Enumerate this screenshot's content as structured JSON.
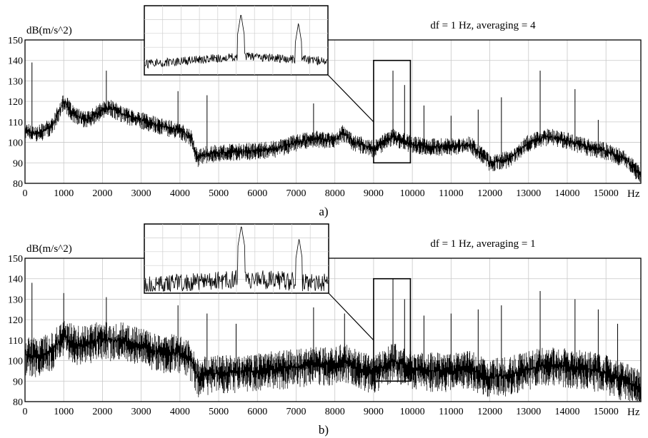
{
  "chart_data": [
    {
      "type": "line",
      "caption": "a)",
      "annotation": "df = 1 Hz, averaging = 4",
      "ylabel": "dB(m/s^2)",
      "xunit": "Hz",
      "xlim": [
        0,
        15900
      ],
      "ylim": [
        80,
        150
      ],
      "x_ticks": [
        0,
        1000,
        2000,
        3000,
        4000,
        5000,
        6000,
        7000,
        8000,
        9000,
        10000,
        11000,
        12000,
        13000,
        14000,
        15000
      ],
      "y_ticks": [
        80,
        90,
        100,
        110,
        120,
        130,
        140,
        150
      ],
      "grid": true,
      "noise_band_db": 4,
      "envelope": {
        "x": [
          0,
          300,
          700,
          1000,
          1300,
          1600,
          2000,
          2200,
          2500,
          3000,
          3500,
          4000,
          4300,
          4450,
          4600,
          5000,
          6000,
          6500,
          7000,
          7500,
          8000,
          8200,
          8500,
          9000,
          9500,
          10000,
          10500,
          11000,
          11500,
          11800,
          12000,
          12500,
          13000,
          13500,
          14000,
          14500,
          15000,
          15500,
          15900
        ],
        "y": [
          106,
          104,
          108,
          120,
          113,
          111,
          116,
          117,
          114,
          111,
          108,
          106,
          102,
          92,
          94,
          95,
          96,
          97,
          100,
          102,
          101,
          105,
          100,
          97,
          103,
          99,
          98,
          98,
          99,
          94,
          90,
          92,
          100,
          103,
          101,
          98,
          96,
          92,
          84
        ]
      },
      "peaks": [
        {
          "x": 180,
          "y": 139
        },
        {
          "x": 2100,
          "y": 135
        },
        {
          "x": 3950,
          "y": 125
        },
        {
          "x": 4700,
          "y": 123
        },
        {
          "x": 7450,
          "y": 119
        },
        {
          "x": 9500,
          "y": 135
        },
        {
          "x": 9800,
          "y": 128
        },
        {
          "x": 10300,
          "y": 118
        },
        {
          "x": 11000,
          "y": 113
        },
        {
          "x": 11700,
          "y": 116
        },
        {
          "x": 12300,
          "y": 122
        },
        {
          "x": 13300,
          "y": 135
        },
        {
          "x": 14200,
          "y": 126
        },
        {
          "x": 14800,
          "y": 111
        }
      ],
      "zoom_box": {
        "x": [
          9000,
          9950
        ],
        "y": [
          90,
          140
        ]
      }
    },
    {
      "type": "line",
      "caption": "b)",
      "annotation": "df = 1 Hz, averaging = 1",
      "ylabel": "dB(m/s^2)",
      "xunit": "Hz",
      "xlim": [
        0,
        15900
      ],
      "ylim": [
        80,
        150
      ],
      "x_ticks": [
        0,
        1000,
        2000,
        3000,
        4000,
        5000,
        6000,
        7000,
        8000,
        9000,
        10000,
        11000,
        12000,
        13000,
        14000,
        15000
      ],
      "y_ticks": [
        80,
        90,
        100,
        110,
        120,
        130,
        140,
        150
      ],
      "grid": true,
      "noise_band_db": 9,
      "envelope": {
        "x": [
          0,
          300,
          700,
          1000,
          1300,
          1600,
          2000,
          2200,
          2500,
          3000,
          3500,
          4000,
          4300,
          4450,
          4600,
          5000,
          6000,
          6500,
          7000,
          7500,
          8000,
          8200,
          8500,
          9000,
          9500,
          10000,
          10500,
          11000,
          11500,
          11800,
          12000,
          12500,
          13000,
          13500,
          14000,
          14500,
          15000,
          15500,
          15900
        ],
        "y": [
          103,
          102,
          105,
          112,
          108,
          108,
          111,
          110,
          110,
          107,
          104,
          104,
          100,
          92,
          93,
          94,
          95,
          96,
          97,
          98,
          98,
          100,
          97,
          94,
          100,
          96,
          95,
          95,
          96,
          93,
          92,
          93,
          96,
          98,
          97,
          96,
          94,
          90,
          86
        ]
      },
      "peaks": [
        {
          "x": 180,
          "y": 138
        },
        {
          "x": 1000,
          "y": 133
        },
        {
          "x": 2100,
          "y": 131
        },
        {
          "x": 3950,
          "y": 127
        },
        {
          "x": 4700,
          "y": 123
        },
        {
          "x": 5450,
          "y": 118
        },
        {
          "x": 7450,
          "y": 126
        },
        {
          "x": 8250,
          "y": 123
        },
        {
          "x": 9500,
          "y": 140
        },
        {
          "x": 9800,
          "y": 130
        },
        {
          "x": 10300,
          "y": 122
        },
        {
          "x": 11000,
          "y": 123
        },
        {
          "x": 11700,
          "y": 125
        },
        {
          "x": 12300,
          "y": 127
        },
        {
          "x": 13300,
          "y": 134
        },
        {
          "x": 14200,
          "y": 130
        },
        {
          "x": 14800,
          "y": 125
        },
        {
          "x": 15300,
          "y": 118
        }
      ],
      "zoom_box": {
        "x": [
          9000,
          9950
        ],
        "y": [
          90,
          140
        ]
      }
    }
  ]
}
